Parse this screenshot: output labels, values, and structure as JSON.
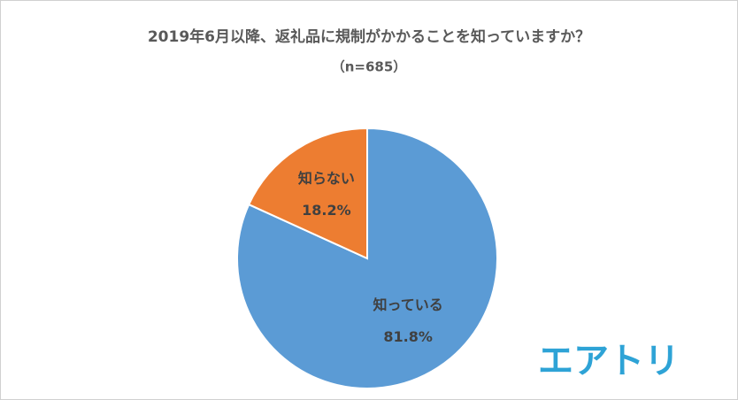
{
  "chart_data": {
    "type": "pie",
    "title": "2019年6月以降、返礼品に規制がかかることを知っていますか？",
    "subtitle": "（n=685）",
    "categories": [
      "知っている",
      "知らない"
    ],
    "values": [
      81.8,
      18.2
    ],
    "value_labels": [
      "81.8%",
      "18.2%"
    ],
    "colors": [
      "#5b9bd5",
      "#ed7d31"
    ]
  },
  "logo": "エアトリ"
}
